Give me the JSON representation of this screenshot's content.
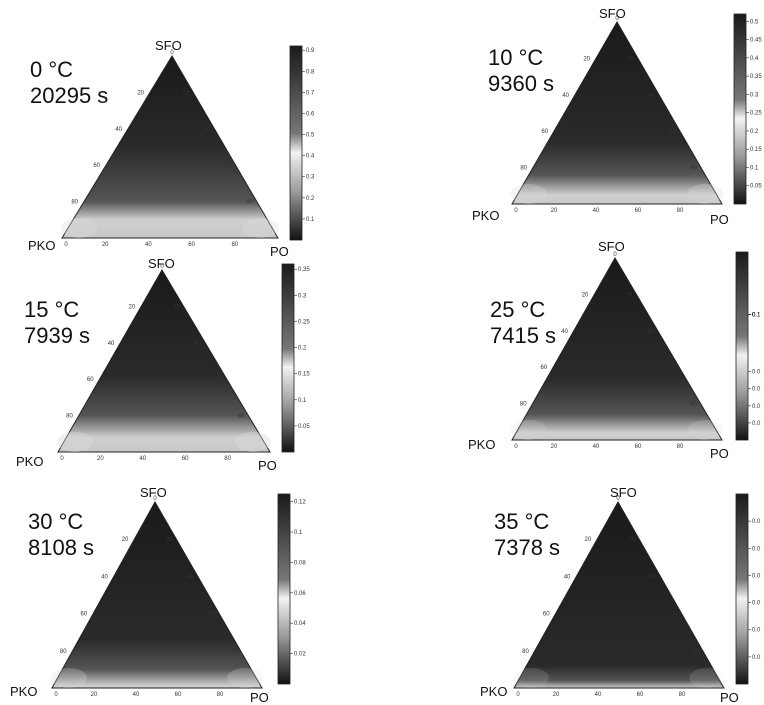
{
  "vertex_labels": {
    "top": "SFO",
    "left": "PKO",
    "right": "PO"
  },
  "chart_data": [
    {
      "type": "heatmap",
      "subtype": "ternary",
      "temperature": "0 °C",
      "time": "20295 s",
      "axis_ticks": [
        "20",
        "40",
        "60",
        "80"
      ],
      "axis_range": [
        0,
        100
      ],
      "colorbar": {
        "ticks": [
          "0.1",
          "0.2",
          "0.3",
          "0.4",
          "0.5",
          "0.6",
          "0.7",
          "0.8",
          "0.9"
        ],
        "range": [
          0,
          0.92
        ],
        "scale": "dark=high, light=low"
      }
    },
    {
      "type": "heatmap",
      "subtype": "ternary",
      "temperature": "10 °C",
      "time": "9360 s",
      "axis_ticks": [
        "20",
        "40",
        "60",
        "80"
      ],
      "axis_range": [
        0,
        100
      ],
      "colorbar": {
        "ticks": [
          "0.05",
          "0.1",
          "0.15",
          "0.2",
          "0.25",
          "0.3",
          "0.35",
          "0.4",
          "0.45",
          "0.5"
        ],
        "range": [
          0,
          0.52
        ],
        "scale": "dark=high, light=low"
      }
    },
    {
      "type": "heatmap",
      "subtype": "ternary",
      "temperature": "15 °C",
      "time": "7939 s",
      "axis_ticks": [
        "20",
        "40",
        "60",
        "80"
      ],
      "axis_range": [
        0,
        100
      ],
      "colorbar": {
        "ticks": [
          "0.05",
          "0.1",
          "0.15",
          "0.2",
          "0.25",
          "0.3",
          "0.35"
        ],
        "range": [
          0,
          0.36
        ],
        "scale": "dark=high, light=low"
      }
    },
    {
      "type": "heatmap",
      "subtype": "ternary",
      "temperature": "25 °C",
      "time": "7415 s",
      "axis_ticks": [
        "20",
        "40",
        "60",
        "80"
      ],
      "axis_range": [
        0,
        100
      ],
      "colorbar": {
        "ticks": [
          "0.0",
          "0.0",
          "0.0",
          "0.0",
          "0.1",
          "0.1",
          "0.1",
          "0.1",
          "0.1",
          "0.1"
        ],
        "range": [
          0,
          0.15
        ],
        "scale": "dark=high, light=low"
      }
    },
    {
      "type": "heatmap",
      "subtype": "ternary",
      "temperature": "30 °C",
      "time": "8108 s",
      "axis_ticks": [
        "20",
        "40",
        "60",
        "80"
      ],
      "axis_range": [
        0,
        100
      ],
      "colorbar": {
        "ticks": [
          "0.02",
          "0.04",
          "0.06",
          "0.08",
          "0.1",
          "0.12"
        ],
        "range": [
          0,
          0.125
        ],
        "scale": "dark=high, light=low"
      }
    },
    {
      "type": "heatmap",
      "subtype": "ternary",
      "temperature": "35 °C",
      "time": "7378 s",
      "axis_ticks": [
        "20",
        "40",
        "60",
        "80"
      ],
      "axis_range": [
        0,
        100
      ],
      "colorbar": {
        "ticks": [
          "0.0",
          "0.0",
          "0.0",
          "0.0",
          "0.0",
          "0.0"
        ],
        "range": [
          0,
          0.1
        ],
        "scale": "dark=high, light=low"
      }
    }
  ]
}
